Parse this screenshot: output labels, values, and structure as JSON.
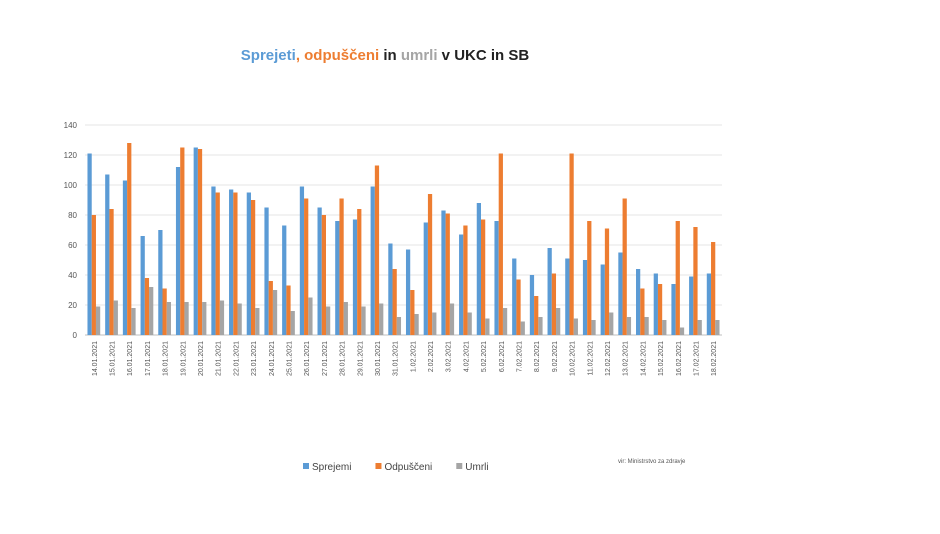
{
  "chart_data": {
    "type": "bar",
    "title_parts": [
      {
        "text": "Sprejeti",
        "color": "#5b9bd5"
      },
      {
        "text": ", odpuščeni",
        "color": "#ed7d31"
      },
      {
        "text": " in ",
        "color": "#222222"
      },
      {
        "text": "umrli",
        "color": "#a5a5a5"
      },
      {
        "text": " v UKC in SB",
        "color": "#222222"
      }
    ],
    "categories": [
      "14.01.2021",
      "15.01.2021",
      "16.01.2021",
      "17.01.2021",
      "18.01.2021",
      "19.01.2021",
      "20.01.2021",
      "21.01.2021",
      "22.01.2021",
      "23.01.2021",
      "24.01.2021",
      "25.01.2021",
      "26.01.2021",
      "27.01.2021",
      "28.01.2021",
      "29.01.2021",
      "30.01.2021",
      "31.01.2021",
      "1.02.2021",
      "2.02.2021",
      "3.02.2021",
      "4.02.2021",
      "5.02.2021",
      "6.02.2021",
      "7.02.2021",
      "8.02.2021",
      "9.02.2021",
      "10.02.2021",
      "11.02.2021",
      "12.02.2021",
      "13.02.2021",
      "14.02.2021",
      "15.02.2021",
      "16.02.2021",
      "17.02.2021",
      "18.02.2021"
    ],
    "series": [
      {
        "name": "Sprejemi",
        "color": "#5b9bd5",
        "values": [
          121,
          107,
          103,
          66,
          70,
          112,
          125,
          99,
          97,
          95,
          85,
          73,
          99,
          85,
          76,
          77,
          99,
          61,
          57,
          75,
          83,
          67,
          88,
          76,
          51,
          40,
          58,
          51,
          50,
          47,
          55,
          44,
          41,
          34,
          39,
          41
        ]
      },
      {
        "name": "Odpuščeni",
        "color": "#ed7d31",
        "values": [
          80,
          84,
          128,
          38,
          31,
          125,
          124,
          95,
          95,
          90,
          36,
          33,
          91,
          80,
          91,
          84,
          113,
          44,
          30,
          94,
          81,
          73,
          77,
          121,
          37,
          26,
          41,
          121,
          76,
          71,
          91,
          31,
          34,
          76,
          72,
          62
        ]
      },
      {
        "name": "Umrli",
        "color": "#a5a5a5",
        "values": [
          19,
          23,
          18,
          32,
          22,
          22,
          22,
          23,
          21,
          18,
          30,
          16,
          25,
          19,
          22,
          19,
          21,
          12,
          14,
          15,
          21,
          15,
          11,
          18,
          9,
          12,
          18,
          11,
          10,
          15,
          12,
          12,
          10,
          5,
          10,
          10
        ]
      }
    ],
    "ylim": [
      0,
      140
    ],
    "yticks": [
      0,
      20,
      40,
      60,
      80,
      100,
      120,
      140
    ],
    "grid": true,
    "source": "vir: Ministrstvo za zdravje"
  }
}
